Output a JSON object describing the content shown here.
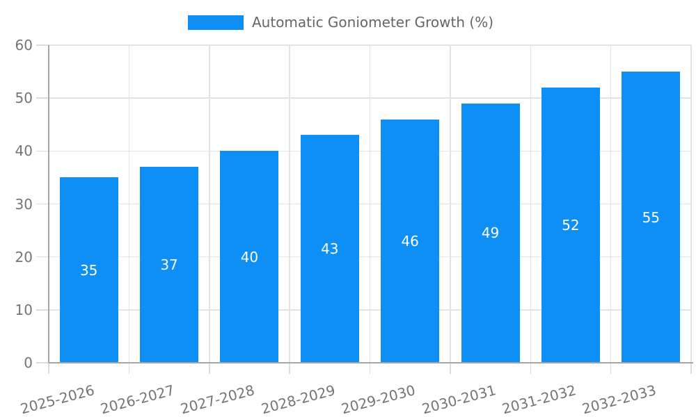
{
  "chart_data": {
    "type": "bar",
    "series_name": "Automatic Goniometer Growth (%)",
    "categories": [
      "2025-2026",
      "2026-2027",
      "2027-2028",
      "2028-2029",
      "2029-2030",
      "2030-2031",
      "2031-2032",
      "2032-2033"
    ],
    "values": [
      35,
      37,
      40,
      43,
      46,
      49,
      52,
      55
    ],
    "title": "",
    "xlabel": "",
    "ylabel": "",
    "ylim": [
      0,
      60
    ],
    "yticks": [
      0,
      10,
      20,
      30,
      40,
      50,
      60
    ],
    "grid": true,
    "legend_position": "top",
    "x_tick_rotation_deg": -15,
    "value_label_position": "inside-center",
    "colors": {
      "bar": "#0d8ff5",
      "value_label": "#ffffff",
      "tick_label": "#757575",
      "legend_label": "#666666",
      "grid": "#e3e3e3",
      "axis": "#a6a6a6",
      "background": "#ffffff"
    }
  }
}
